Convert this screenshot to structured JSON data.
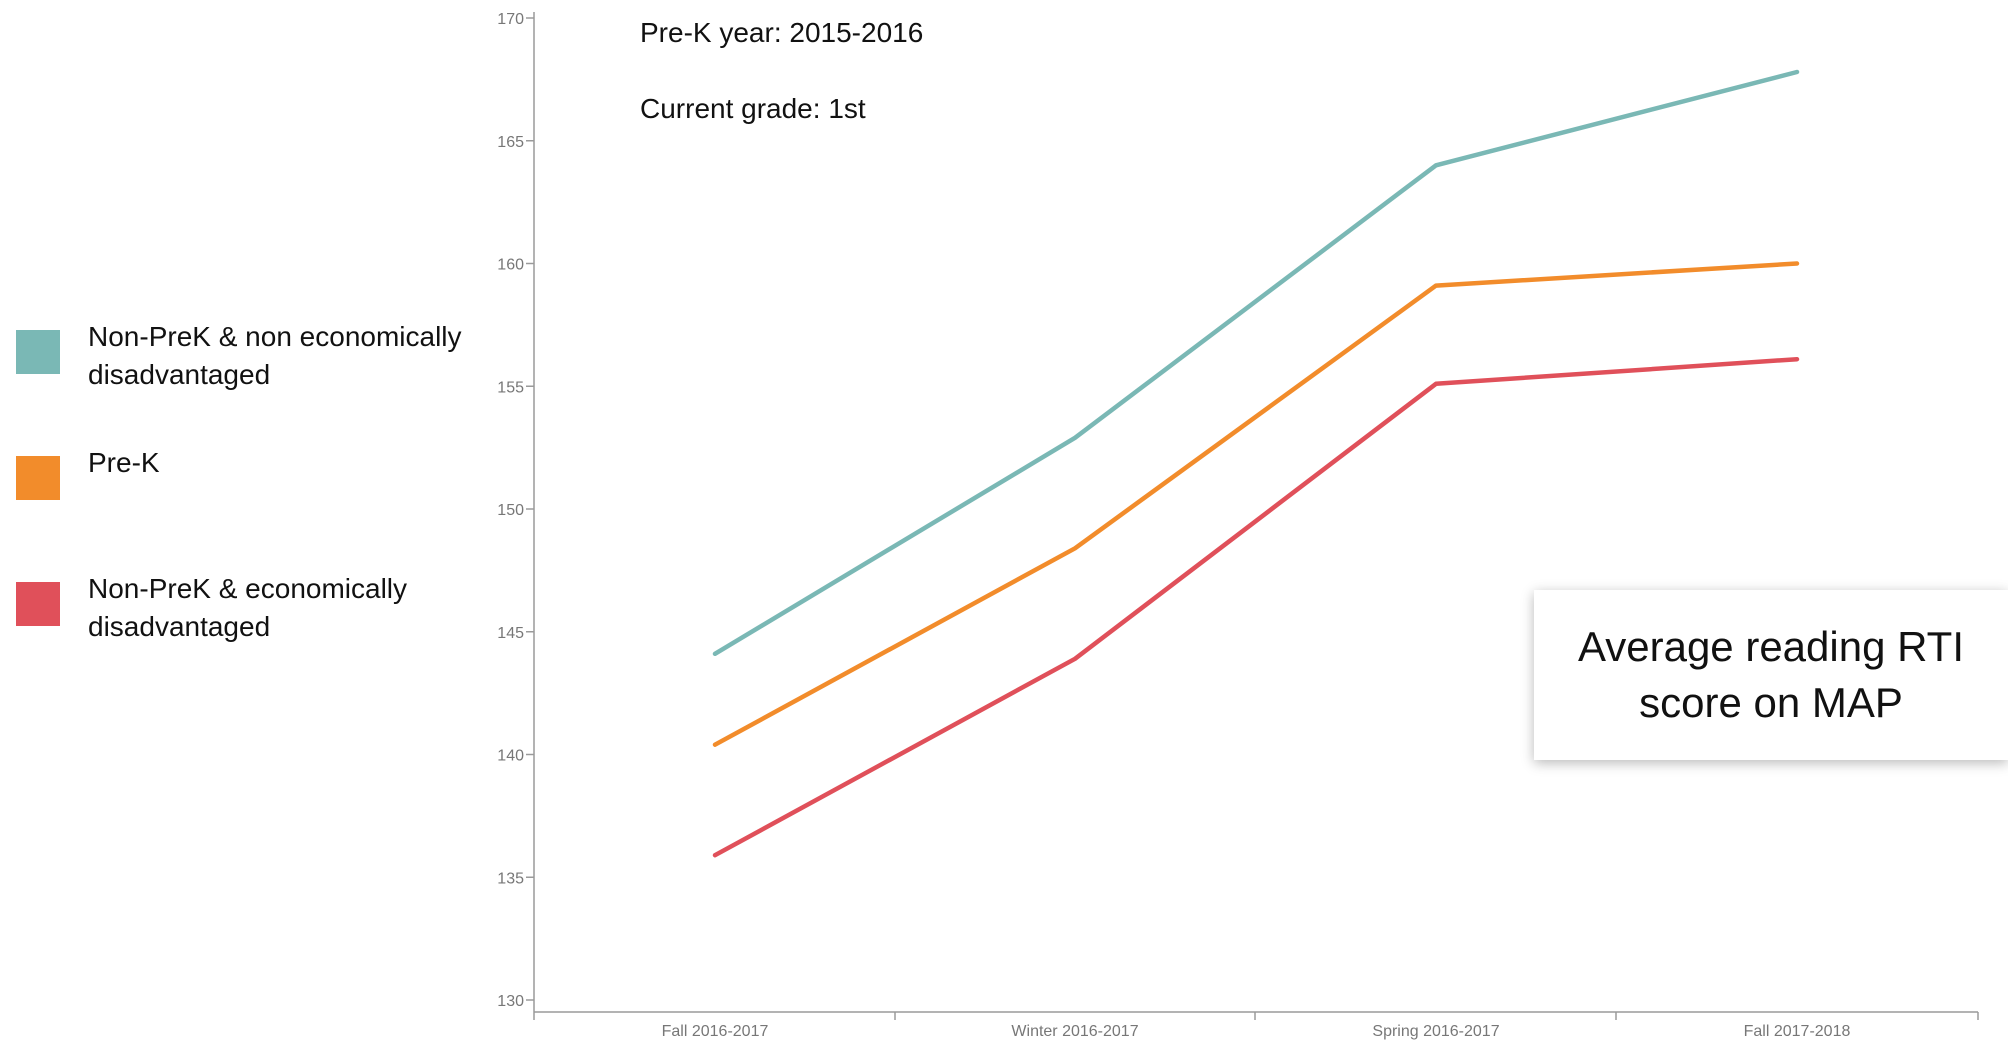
{
  "info": {
    "prek_year": "Pre-K year: 2015-2016",
    "current_grade": "Current grade: 1st"
  },
  "title_box": {
    "text": "Average reading RTI score on MAP"
  },
  "legend": [
    {
      "label": "Non-PreK & non economically disadvantaged",
      "color": "#7ab8b5"
    },
    {
      "label": "Pre-K",
      "color": "#f28c2b"
    },
    {
      "label": "Non-PreK & economically disadvantaged",
      "color": "#e0505a"
    }
  ],
  "chart_data": {
    "type": "line",
    "categories": [
      "Fall 2016-2017",
      "Winter 2016-2017",
      "Spring 2016-2017",
      "Fall 2017-2018"
    ],
    "series": [
      {
        "name": "Non-PreK & non economically disadvantaged",
        "color": "#7ab8b5",
        "values": [
          144.1,
          152.9,
          164.0,
          167.8
        ]
      },
      {
        "name": "Pre-K",
        "color": "#f28c2b",
        "values": [
          140.4,
          148.4,
          159.1,
          160.0
        ]
      },
      {
        "name": "Non-PreK & economically disadvantaged",
        "color": "#e0505a",
        "values": [
          135.9,
          143.9,
          155.1,
          156.1
        ]
      }
    ],
    "ylim": [
      130,
      170
    ],
    "yticks": [
      130,
      135,
      140,
      145,
      150,
      155,
      160,
      165,
      170
    ],
    "xlabel": "",
    "ylabel": "",
    "grid": false,
    "legend_position": "left"
  }
}
